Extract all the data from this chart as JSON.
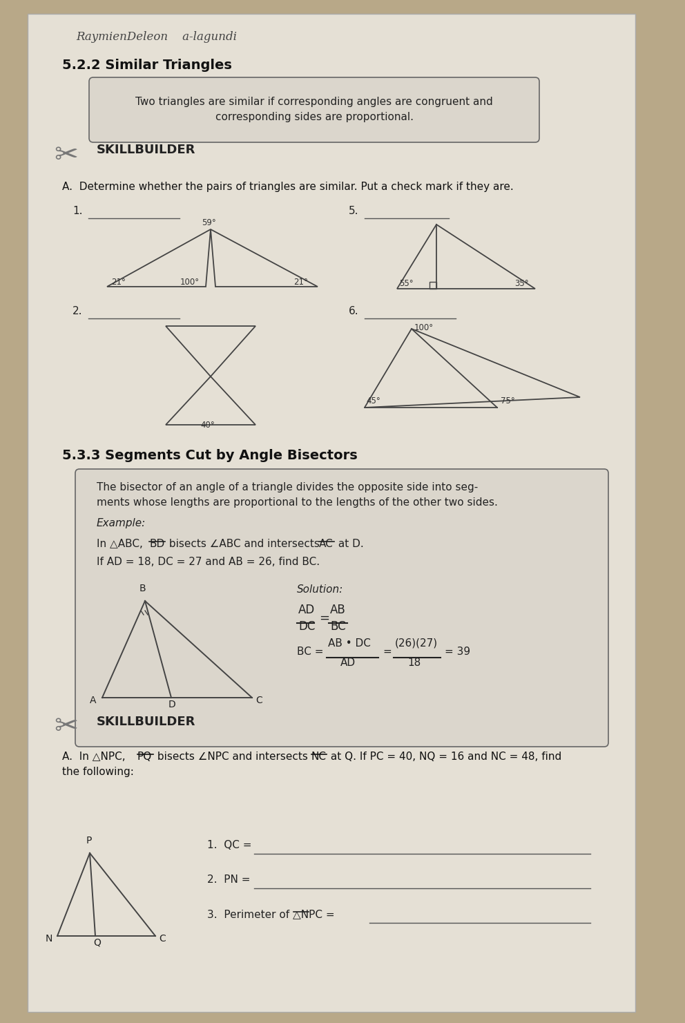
{
  "bg_color": "#b8a888",
  "paper_color": "#e5e0d5",
  "handwriting_line": "RaymienDeleon    a-lagundi",
  "section_522_title": "5.2.2 Similar Triangles",
  "box1_text": "Two triangles are similar if corresponding angles are congruent and\ncorresponding sides are proportional.",
  "skillbuilder_text": "SKILLBUILDER",
  "instruction_A": "A.  Determine whether the pairs of triangles are similar. Put a check mark if they are.",
  "section_533_title": "5.3.3 Segments Cut by Angle Bisectors",
  "box2_line1": "The bisector of an angle of a triangle divides the opposite side into seg-",
  "box2_line2": "ments whose lengths are proportional to the lengths of the other two sides.",
  "example_label": "Example:",
  "example_line1": "In △ABC,  BD  bisects ∠ABC and intersects  AC  at D.",
  "example_line2": "If AD = 18, DC = 27 and AB = 26, find BC.",
  "solution_label": "Solution:",
  "skillbuilder2_text": "SKILLBUILDER",
  "problem_A": "A.  In △NPC,  PQ  bisects ∠NPC and intersects  NC  at Q. If PC = 40, NQ = 16 and NC = 48, find",
  "problem_A2": "the following:",
  "q1": "1.  QC = ",
  "q2": "2.  PN = ",
  "q3": "3.  Perimeter of △NPC = "
}
